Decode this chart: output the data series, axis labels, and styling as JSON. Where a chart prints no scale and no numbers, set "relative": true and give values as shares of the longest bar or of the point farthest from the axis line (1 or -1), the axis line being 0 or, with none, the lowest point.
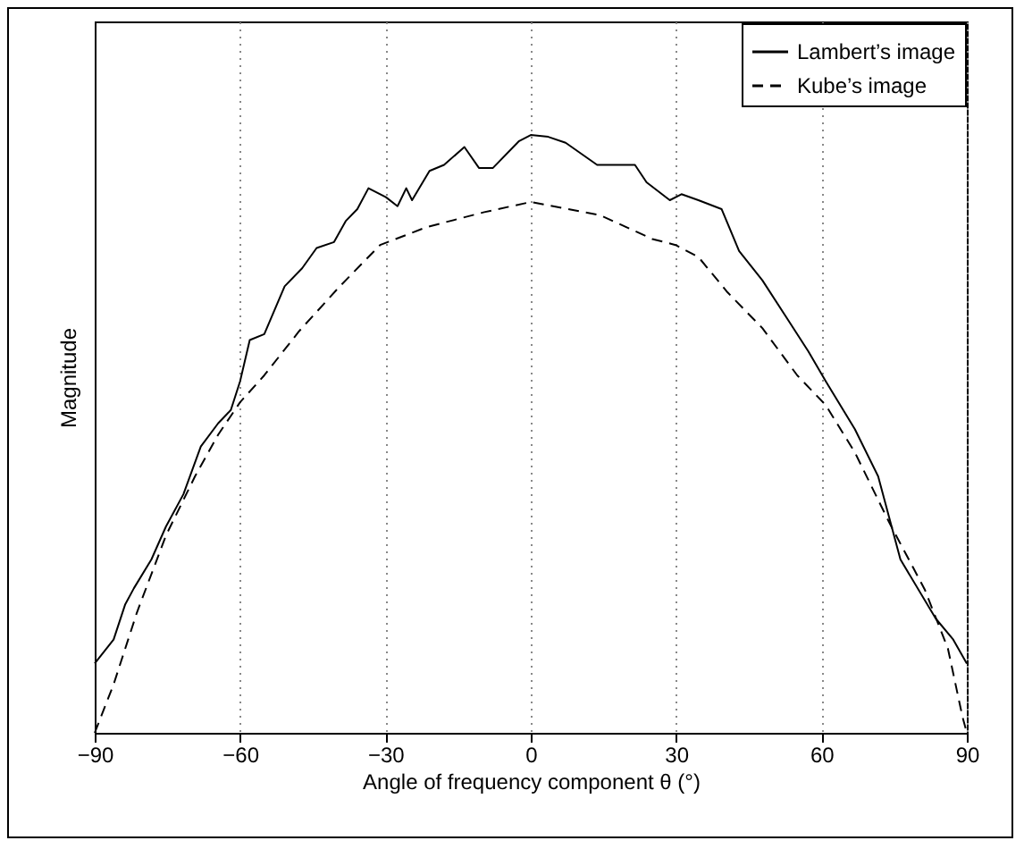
{
  "chart_data": {
    "type": "line",
    "relative": true,
    "xlabel": "Angle of frequency component θ (°)",
    "ylabel": "Magnitude",
    "xlim": [
      -90,
      90
    ],
    "xticks": [
      {
        "value": -90,
        "label": "−90"
      },
      {
        "value": -60,
        "label": "−60"
      },
      {
        "value": -30,
        "label": "−30"
      },
      0,
      30,
      60,
      90
    ],
    "grid": "x",
    "legend": "top right",
    "marker": "none",
    "series": [
      {
        "name": "Lambert’s image",
        "color": "#000000",
        "line_style": "solid",
        "x": [
          -90,
          -86.1,
          -83.7,
          -81.9,
          -78.3,
          -75.3,
          -71.7,
          -68.1,
          -64.5,
          -61.9,
          -60,
          -58,
          -55,
          -50.8,
          -47.2,
          -44.2,
          -40.6,
          -38.2,
          -35.8,
          -33.5,
          -29.9,
          -27.5,
          -25.7,
          -24.5,
          -20.9,
          -17.9,
          -13.7,
          -10.7,
          -7.8,
          -2.4,
          0,
          3.6,
          7.2,
          13.7,
          21.5,
          23.9,
          28.7,
          31.1,
          34.6,
          39.4,
          43,
          47.8,
          52.6,
          57.3,
          60.9,
          66.9,
          71.7,
          76.3,
          83.6,
          87.2,
          90
        ],
        "values": [
          0.116,
          0.156,
          0.215,
          0.242,
          0.29,
          0.345,
          0.399,
          0.479,
          0.518,
          0.54,
          0.588,
          0.657,
          0.667,
          0.747,
          0.777,
          0.811,
          0.821,
          0.856,
          0.876,
          0.911,
          0.896,
          0.881,
          0.911,
          0.891,
          0.94,
          0.95,
          0.98,
          0.945,
          0.945,
          0.99,
          1,
          0.997,
          0.987,
          0.95,
          0.95,
          0.921,
          0.891,
          0.901,
          0.891,
          0.876,
          0.806,
          0.757,
          0.697,
          0.638,
          0.588,
          0.508,
          0.429,
          0.29,
          0.191,
          0.156,
          0.116
        ]
      },
      {
        "name": "Kube’s image",
        "color": "#000000",
        "line_style": "dashed",
        "x": [
          -90,
          -86.1,
          -81.3,
          -75.3,
          -69.3,
          -64.5,
          -60,
          -55,
          -47.8,
          -39.4,
          -31.1,
          -21.5,
          -9.6,
          0,
          14.3,
          25.1,
          29.9,
          34.6,
          40.6,
          47.8,
          55,
          60.9,
          66.9,
          74.1,
          81.3,
          86.1,
          89.1,
          90
        ],
        "values": [
          0,
          0.081,
          0.201,
          0.33,
          0.429,
          0.499,
          0.553,
          0.598,
          0.672,
          0.747,
          0.816,
          0.846,
          0.871,
          0.888,
          0.866,
          0.826,
          0.816,
          0.796,
          0.737,
          0.677,
          0.598,
          0.548,
          0.469,
          0.35,
          0.24,
          0.141,
          0.027,
          0
        ]
      }
    ]
  }
}
